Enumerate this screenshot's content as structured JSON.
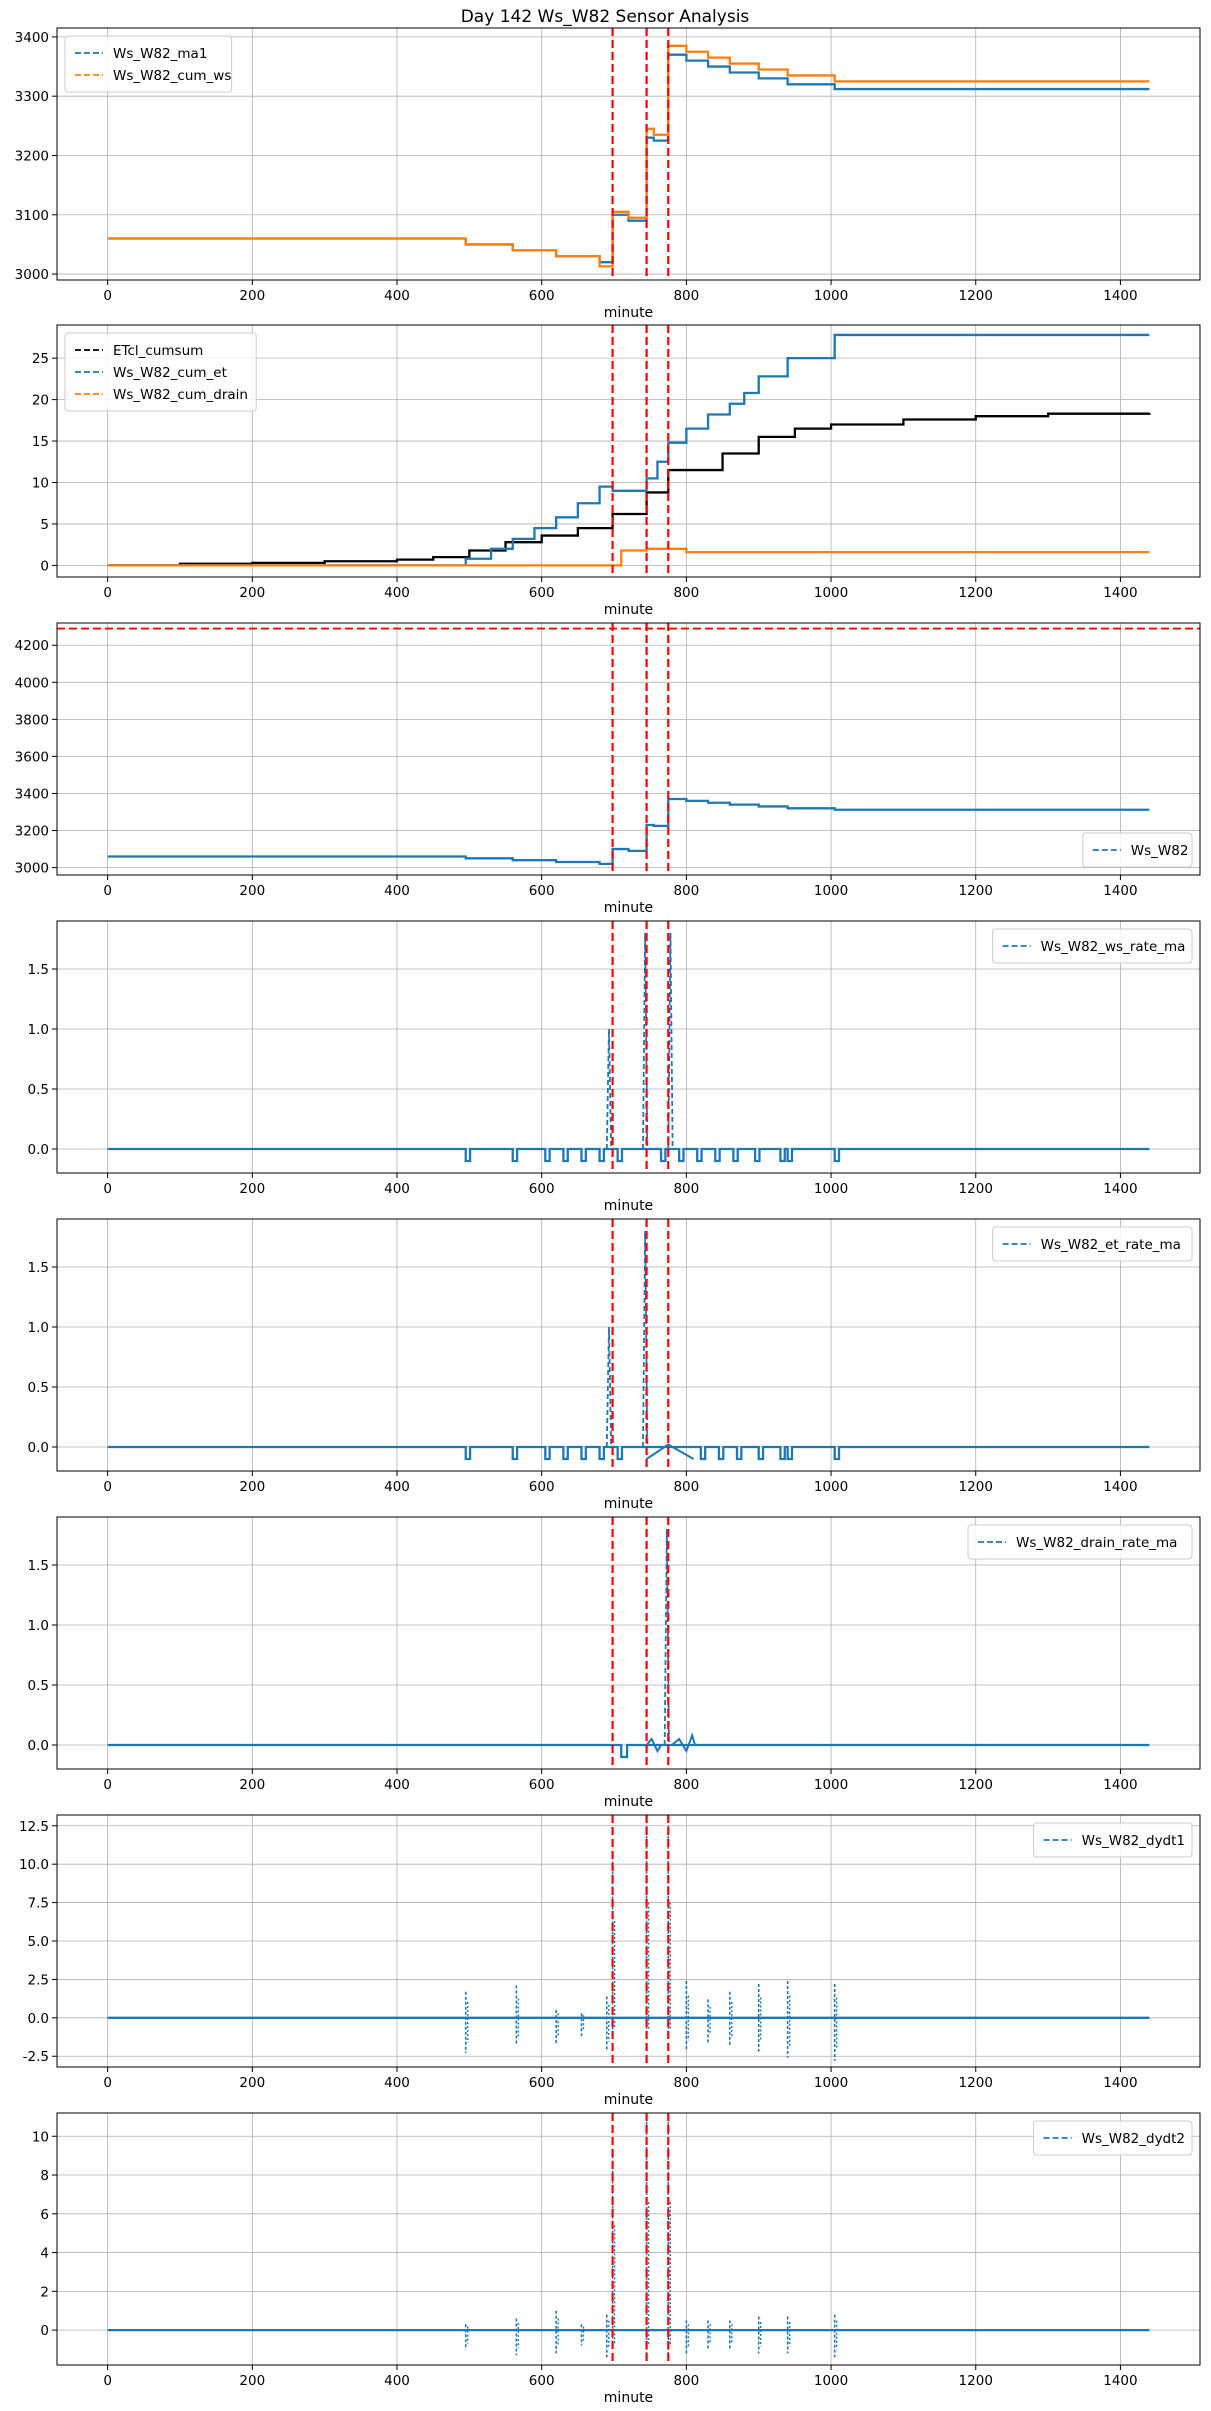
{
  "title": "Day 142 Ws_W82 Sensor Analysis",
  "colors": {
    "blue": "#1f77b4",
    "orange": "#ff7f0e",
    "black": "#000000",
    "red": "#ff0000",
    "grid": "#b0b0b0"
  },
  "chart_data": [
    {
      "type": "line",
      "title": "",
      "xlabel": "minute",
      "ylabel": "",
      "xlim": [
        -70,
        1510
      ],
      "ylim": [
        2990,
        3415
      ],
      "xticks": [
        0,
        200,
        400,
        600,
        800,
        1000,
        1200,
        1400
      ],
      "yticks": [
        3000,
        3100,
        3200,
        3300,
        3400
      ],
      "grid": true,
      "legend_loc": "upper-left",
      "vlines": [
        698,
        745,
        775
      ],
      "series": [
        {
          "name": "Ws_W82_ma1",
          "color": "#1f77b4",
          "step": true,
          "x": [
            0,
            495,
            560,
            620,
            680,
            698,
            720,
            745,
            755,
            775,
            800,
            830,
            860,
            900,
            940,
            1005,
            1440
          ],
          "y": [
            3060,
            3050,
            3040,
            3030,
            3020,
            3100,
            3090,
            3230,
            3225,
            3370,
            3360,
            3350,
            3340,
            3330,
            3320,
            3312,
            3312
          ]
        },
        {
          "name": "Ws_W82_cum_ws",
          "color": "#ff7f0e",
          "step": true,
          "x": [
            0,
            495,
            560,
            620,
            680,
            698,
            720,
            745,
            755,
            775,
            800,
            830,
            860,
            900,
            940,
            1005,
            1440
          ],
          "y": [
            3060,
            3050,
            3040,
            3030,
            3013,
            3105,
            3095,
            3245,
            3235,
            3385,
            3375,
            3365,
            3355,
            3345,
            3335,
            3325,
            3325
          ]
        }
      ]
    },
    {
      "type": "line",
      "title": "",
      "xlabel": "minute",
      "ylabel": "",
      "xlim": [
        -70,
        1510
      ],
      "ylim": [
        -1.4,
        29
      ],
      "xticks": [
        0,
        200,
        400,
        600,
        800,
        1000,
        1200,
        1400
      ],
      "yticks": [
        0,
        5,
        10,
        15,
        20,
        25
      ],
      "grid": true,
      "legend_loc": "upper-left",
      "vlines": [
        698,
        745,
        775
      ],
      "series": [
        {
          "name": "ETcl_cumsum",
          "color": "#000000",
          "step": true,
          "x": [
            0,
            100,
            200,
            300,
            400,
            450,
            500,
            550,
            600,
            650,
            698,
            745,
            775,
            850,
            900,
            950,
            1000,
            1100,
            1200,
            1300,
            1440
          ],
          "y": [
            0,
            0.2,
            0.3,
            0.5,
            0.7,
            1.0,
            1.8,
            2.8,
            3.6,
            4.5,
            6.2,
            8.8,
            11.5,
            13.5,
            15.5,
            16.5,
            17.0,
            17.6,
            18.0,
            18.3,
            18.4
          ]
        },
        {
          "name": "Ws_W82_cum_et",
          "color": "#1f77b4",
          "step": true,
          "x": [
            0,
            495,
            530,
            560,
            590,
            620,
            650,
            680,
            698,
            745,
            760,
            775,
            800,
            830,
            860,
            880,
            900,
            940,
            1005,
            1440
          ],
          "y": [
            0,
            0.8,
            2.0,
            3.2,
            4.5,
            5.8,
            7.5,
            9.5,
            9.0,
            10.5,
            12.5,
            14.8,
            16.5,
            18.2,
            19.5,
            20.8,
            22.8,
            25.0,
            27.8,
            27.8
          ]
        },
        {
          "name": "Ws_W82_cum_drain",
          "color": "#ff7f0e",
          "step": true,
          "x": [
            0,
            698,
            710,
            745,
            775,
            800,
            1440
          ],
          "y": [
            0,
            0,
            1.8,
            2.0,
            2.0,
            1.6,
            1.6
          ]
        }
      ]
    },
    {
      "type": "line",
      "title": "",
      "xlabel": "minute",
      "ylabel": "",
      "xlim": [
        -70,
        1510
      ],
      "ylim": [
        2960,
        4320
      ],
      "xticks": [
        0,
        200,
        400,
        600,
        800,
        1000,
        1200,
        1400
      ],
      "yticks": [
        3000,
        3200,
        3400,
        3600,
        3800,
        4000,
        4200
      ],
      "grid": true,
      "legend_loc": "lower-right",
      "hlines": [
        4290
      ],
      "vlines": [
        698,
        745,
        775
      ],
      "series": [
        {
          "name": "Ws_W82",
          "color": "#1f77b4",
          "step": true,
          "x": [
            0,
            495,
            560,
            620,
            680,
            698,
            720,
            745,
            755,
            775,
            800,
            830,
            860,
            900,
            940,
            1005,
            1440
          ],
          "y": [
            3060,
            3050,
            3040,
            3030,
            3020,
            3100,
            3090,
            3230,
            3225,
            3370,
            3360,
            3350,
            3340,
            3330,
            3320,
            3312,
            3312
          ]
        }
      ]
    },
    {
      "type": "line",
      "title": "",
      "xlabel": "minute",
      "ylabel": "",
      "xlim": [
        -70,
        1510
      ],
      "ylim": [
        -0.2,
        1.9
      ],
      "xticks": [
        0,
        200,
        400,
        600,
        800,
        1000,
        1200,
        1400
      ],
      "yticks": [
        0.0,
        0.5,
        1.0,
        1.5
      ],
      "tick_decimals": 1,
      "grid": true,
      "legend_loc": "upper-right",
      "vlines": [
        698,
        745,
        775
      ],
      "dips": [
        495,
        560,
        605,
        630,
        655,
        680,
        705,
        765,
        790,
        815,
        840,
        865,
        895,
        930,
        940,
        1005
      ],
      "dip_depth": -0.1,
      "dip_width": 6,
      "spikes": [
        [
          690,
          1.0
        ],
        [
          740,
          1.8
        ],
        [
          775,
          1.8
        ]
      ],
      "series": [
        {
          "name": "Ws_W82_ws_rate_ma",
          "color": "#1f77b4",
          "step": false,
          "x": [
            0,
            1440
          ],
          "y": [
            0,
            0
          ]
        }
      ]
    },
    {
      "type": "line",
      "title": "",
      "xlabel": "minute",
      "ylabel": "",
      "xlim": [
        -70,
        1510
      ],
      "ylim": [
        -0.2,
        1.9
      ],
      "xticks": [
        0,
        200,
        400,
        600,
        800,
        1000,
        1200,
        1400
      ],
      "yticks": [
        0.0,
        0.5,
        1.0,
        1.5
      ],
      "tick_decimals": 1,
      "grid": true,
      "legend_loc": "upper-right",
      "vlines": [
        698,
        745,
        775
      ],
      "dips": [
        495,
        560,
        605,
        630,
        655,
        680,
        705,
        820,
        845,
        870,
        900,
        930,
        940,
        1005
      ],
      "dip_depth": -0.1,
      "dip_width": 6,
      "spikes": [
        [
          690,
          1.0
        ],
        [
          740,
          1.8
        ]
      ],
      "extra_segments": [
        [
          [
            745,
            -0.1
          ],
          [
            775,
            0.02
          ],
          [
            810,
            -0.1
          ]
        ]
      ],
      "series": [
        {
          "name": "Ws_W82_et_rate_ma",
          "color": "#1f77b4",
          "step": false,
          "x": [
            0,
            1440
          ],
          "y": [
            0,
            0
          ]
        }
      ]
    },
    {
      "type": "line",
      "title": "",
      "xlabel": "minute",
      "ylabel": "",
      "xlim": [
        -70,
        1510
      ],
      "ylim": [
        -0.2,
        1.9
      ],
      "xticks": [
        0,
        200,
        400,
        600,
        800,
        1000,
        1200,
        1400
      ],
      "yticks": [
        0.0,
        0.5,
        1.0,
        1.5
      ],
      "tick_decimals": 1,
      "grid": true,
      "legend_loc": "upper-right",
      "vlines": [
        698,
        745,
        775
      ],
      "dips": [
        710
      ],
      "dip_depth": -0.1,
      "dip_width": 8,
      "spikes": [
        [
          770,
          1.8
        ]
      ],
      "extra_segments": [
        [
          [
            745,
            0.0
          ],
          [
            752,
            0.05
          ],
          [
            760,
            -0.05
          ],
          [
            765,
            0.0
          ]
        ],
        [
          [
            780,
            0.0
          ],
          [
            790,
            0.05
          ],
          [
            800,
            -0.05
          ],
          [
            808,
            0.08
          ],
          [
            812,
            0.0
          ]
        ]
      ],
      "series": [
        {
          "name": "Ws_W82_drain_rate_ma",
          "color": "#1f77b4",
          "step": false,
          "x": [
            0,
            1440
          ],
          "y": [
            0,
            0
          ]
        }
      ]
    },
    {
      "type": "line",
      "title": "",
      "xlabel": "minute",
      "ylabel": "",
      "xlim": [
        -70,
        1510
      ],
      "ylim": [
        -3.2,
        13.2
      ],
      "xticks": [
        0,
        200,
        400,
        600,
        800,
        1000,
        1200,
        1400
      ],
      "yticks": [
        -2.5,
        0.0,
        2.5,
        5.0,
        7.5,
        10.0,
        12.5
      ],
      "tick_decimals": 1,
      "grid": true,
      "legend_loc": "upper-right",
      "vlines": [
        698,
        745,
        775
      ],
      "bursts": [
        [
          495,
          1.7,
          -2.3
        ],
        [
          565,
          2.1,
          -1.8
        ],
        [
          620,
          0.5,
          -1.7
        ],
        [
          655,
          0.3,
          -1.2
        ],
        [
          690,
          1.4,
          -2.2
        ],
        [
          698,
          10.5,
          -1.0
        ],
        [
          745,
          12.5,
          -1.0
        ],
        [
          775,
          12.5,
          -1.0
        ],
        [
          800,
          2.4,
          -2.1
        ],
        [
          830,
          1.2,
          -1.6
        ],
        [
          860,
          1.7,
          -1.8
        ],
        [
          900,
          2.2,
          -2.2
        ],
        [
          940,
          2.4,
          -2.6
        ],
        [
          1005,
          2.2,
          -2.8
        ]
      ],
      "series": [
        {
          "name": "Ws_W82_dydt1",
          "color": "#1f77b4",
          "step": false,
          "x": [
            0,
            1440
          ],
          "y": [
            0,
            0
          ]
        }
      ]
    },
    {
      "type": "line",
      "title": "",
      "xlabel": "minute",
      "ylabel": "",
      "xlim": [
        -70,
        1510
      ],
      "ylim": [
        -1.8,
        11.2
      ],
      "xticks": [
        0,
        200,
        400,
        600,
        800,
        1000,
        1200,
        1400
      ],
      "yticks": [
        0,
        2,
        4,
        6,
        8,
        10
      ],
      "tick_decimals": 0,
      "grid": true,
      "legend_loc": "upper-right",
      "vlines": [
        698,
        745,
        775
      ],
      "bursts": [
        [
          495,
          0.3,
          -1.0
        ],
        [
          565,
          0.6,
          -1.3
        ],
        [
          620,
          1.0,
          -1.2
        ],
        [
          655,
          0.3,
          -0.8
        ],
        [
          690,
          0.8,
          -1.4
        ],
        [
          698,
          9.0,
          -1.0
        ],
        [
          745,
          11.0,
          -1.2
        ],
        [
          775,
          11.0,
          -1.2
        ],
        [
          800,
          0.5,
          -1.2
        ],
        [
          830,
          0.5,
          -1.0
        ],
        [
          860,
          0.5,
          -1.0
        ],
        [
          900,
          0.7,
          -1.2
        ],
        [
          940,
          0.7,
          -1.2
        ],
        [
          1005,
          0.8,
          -1.4
        ]
      ],
      "series": [
        {
          "name": "Ws_W82_dydt2",
          "color": "#1f77b4",
          "step": false,
          "x": [
            0,
            1440
          ],
          "y": [
            0,
            0
          ]
        }
      ]
    }
  ]
}
